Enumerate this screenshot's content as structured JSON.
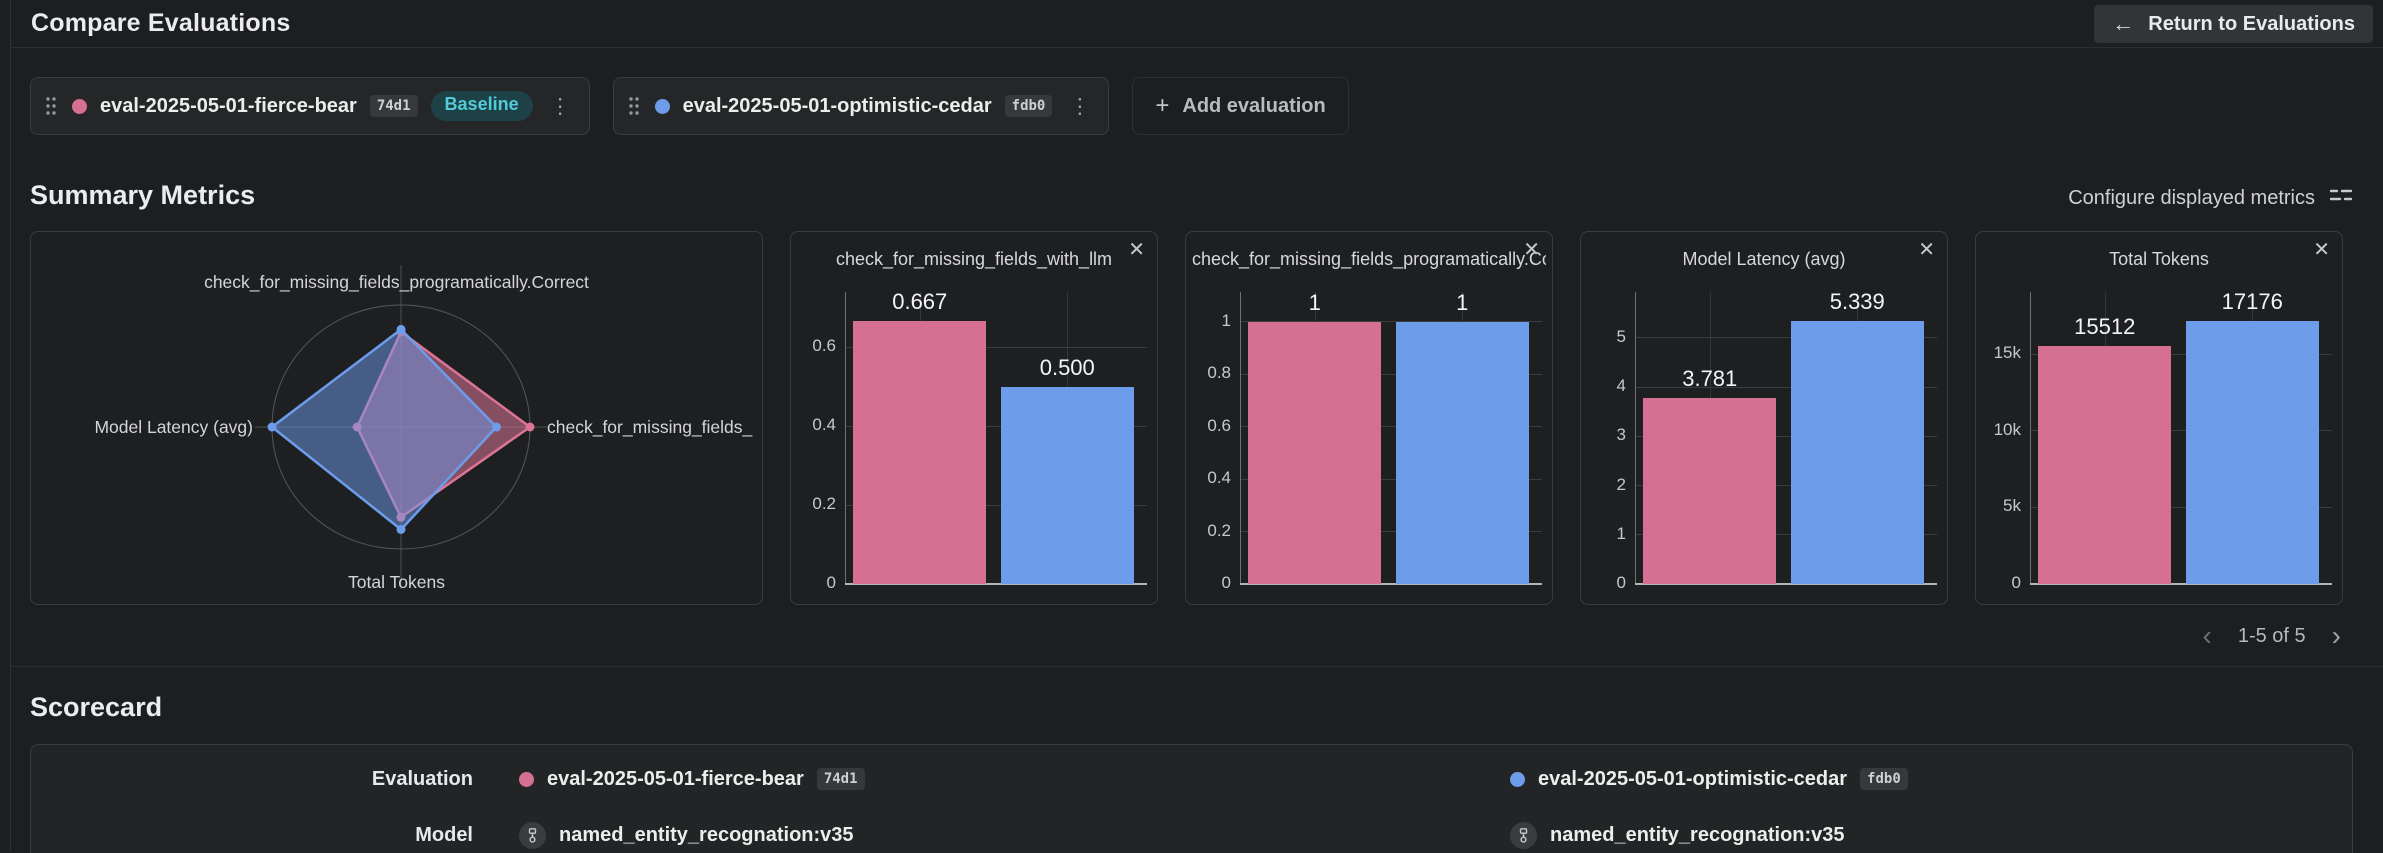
{
  "header": {
    "title": "Compare Evaluations",
    "return_label": "Return to Evaluations"
  },
  "colors": {
    "pink": "#d67092",
    "blue": "#6d9ceb",
    "baseline_badge_bg": "#1d4147",
    "baseline_badge_text": "#52cbd8"
  },
  "evaluations": [
    {
      "name": "eval-2025-05-01-fierce-bear",
      "hash": "74d1",
      "badge": "Baseline",
      "color_key": "pink"
    },
    {
      "name": "eval-2025-05-01-optimistic-cedar",
      "hash": "fdb0",
      "color_key": "blue"
    }
  ],
  "toolbar": {
    "add_evaluation": "Add evaluation"
  },
  "summary": {
    "title": "Summary Metrics",
    "configure_label": "Configure displayed metrics",
    "pagination": "1-5 of 5"
  },
  "chart_data": [
    {
      "type": "radar",
      "axes": [
        "check_for_missing_fields_programatically.Correct",
        "check_for_missing_fields_",
        "Total Tokens",
        "Model Latency (avg)"
      ],
      "series": [
        {
          "name": "eval-2025-05-01-fierce-bear",
          "color_key": "pink",
          "values": [
            1,
            0.667,
            15512,
            3.781
          ],
          "display_fractions": [
            0.78,
            1.0,
            0.74,
            0.34
          ]
        },
        {
          "name": "eval-2025-05-01-optimistic-cedar",
          "color_key": "blue",
          "values": [
            1,
            0.5,
            17176,
            5.339
          ],
          "display_fractions": [
            0.8,
            0.74,
            0.84,
            1.0
          ]
        }
      ]
    },
    {
      "type": "bar",
      "title": "check_for_missing_fields_with_llm",
      "categories": [
        "eval-2025-05-01-fierce-bear",
        "eval-2025-05-01-optimistic-cedar"
      ],
      "values": [
        0.667,
        0.5
      ],
      "value_labels": [
        "0.667",
        "0.500"
      ],
      "yticks": [
        0,
        0.2,
        0.4,
        0.6
      ],
      "ytick_labels": [
        "0",
        "0.2",
        "0.4",
        "0.6"
      ],
      "ylim": [
        0,
        0.745
      ]
    },
    {
      "type": "bar",
      "title": "check_for_missing_fields_programatically.Correct",
      "categories": [
        "eval-2025-05-01-fierce-bear",
        "eval-2025-05-01-optimistic-cedar"
      ],
      "values": [
        1,
        1
      ],
      "value_labels": [
        "1",
        "1"
      ],
      "yticks": [
        0,
        0.2,
        0.4,
        0.6,
        0.8,
        1
      ],
      "ytick_labels": [
        "0",
        "0.2",
        "0.4",
        "0.6",
        "0.8",
        "1"
      ],
      "ylim": [
        0,
        1.12
      ]
    },
    {
      "type": "bar",
      "title": "Model Latency (avg)",
      "categories": [
        "eval-2025-05-01-fierce-bear",
        "eval-2025-05-01-optimistic-cedar"
      ],
      "values": [
        3.781,
        5.339
      ],
      "value_labels": [
        "3.781",
        "5.339"
      ],
      "yticks": [
        0,
        1,
        2,
        3,
        4,
        5
      ],
      "ytick_labels": [
        "0",
        "1",
        "2",
        "3",
        "4",
        "5"
      ],
      "ylim": [
        0,
        5.97
      ]
    },
    {
      "type": "bar",
      "title": "Total Tokens",
      "categories": [
        "eval-2025-05-01-fierce-bear",
        "eval-2025-05-01-optimistic-cedar"
      ],
      "values": [
        15512,
        17176
      ],
      "value_labels": [
        "15512",
        "17176"
      ],
      "yticks": [
        0,
        5000,
        10000,
        15000
      ],
      "ytick_labels": [
        "0",
        "5k",
        "10k",
        "15k"
      ],
      "ylim": [
        0,
        19200
      ]
    }
  ],
  "scorecard": {
    "title": "Scorecard",
    "row_labels": {
      "evaluation": "Evaluation",
      "model": "Model"
    },
    "models": [
      "named_entity_recognation:v35",
      "named_entity_recognation:v35"
    ]
  }
}
